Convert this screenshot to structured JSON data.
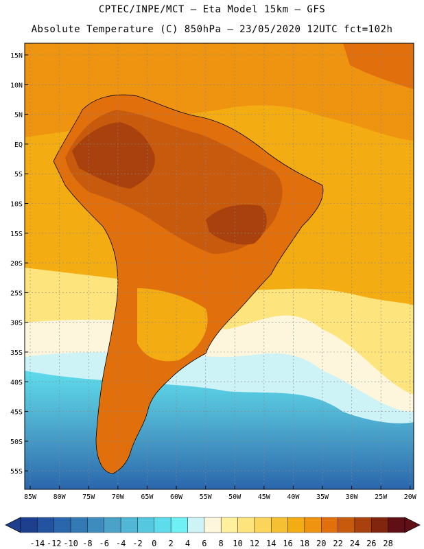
{
  "header": {
    "line1": "CPTEC/INPE/MCT –  Eta Model 15km – GFS",
    "line2": "Absolute Temperature (C) 850hPa – 23/05/2020 12UTC fct=102h"
  },
  "lat_labels": [
    "15N",
    "10N",
    "5N",
    "EQ",
    "5S",
    "10S",
    "15S",
    "20S",
    "25S",
    "30S",
    "35S",
    "40S",
    "45S",
    "50S",
    "55S"
  ],
  "lon_labels": [
    "85W",
    "80W",
    "75W",
    "70W",
    "65W",
    "60W",
    "55W",
    "50W",
    "45W",
    "40W",
    "35W",
    "30W",
    "25W",
    "20W"
  ],
  "colorbar": {
    "labels": [
      "-14",
      "-12",
      "-10",
      "-8",
      "-6",
      "-4",
      "-2",
      "0",
      "2",
      "4",
      "6",
      "8",
      "10",
      "12",
      "14",
      "16",
      "18",
      "20",
      "22",
      "24",
      "26",
      "28"
    ],
    "colors": [
      "#1d3f8e",
      "#23539e",
      "#2a66ac",
      "#3379b4",
      "#3e8cbe",
      "#4aa2c9",
      "#52b6d5",
      "#55c8e0",
      "#5ddcec",
      "#6ef0f4",
      "#cdf3f7",
      "#fdf6dc",
      "#fef09c",
      "#fde47c",
      "#fbd45a",
      "#f6c033",
      "#f3ac11",
      "#ef9410",
      "#e1700c",
      "#c85a0d",
      "#a8410d",
      "#82250e",
      "#600f16"
    ]
  },
  "regions": {
    "ocean_warm": "#f3ac11",
    "ocean_tropical_north": "#ef9410",
    "land_hot": "#c85a0d",
    "land_very_hot": "#a8410d",
    "land_warm": "#e1700c",
    "cool_band": "#fde47c",
    "pale_band": "#fdf6dc",
    "cold_band": "#5ddcec",
    "colder_band": "#3e8cbe",
    "coldest": "#2a66ac"
  }
}
